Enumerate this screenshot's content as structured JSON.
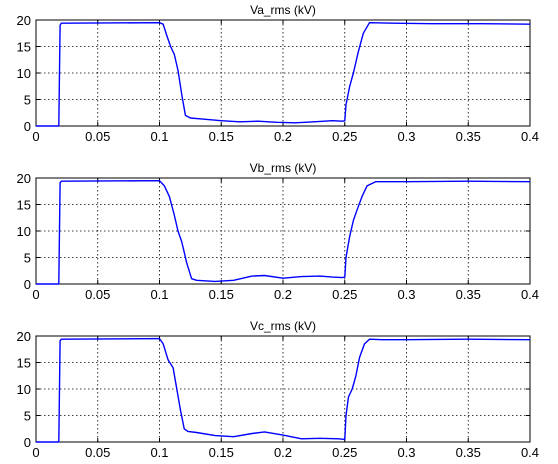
{
  "chart_data": [
    {
      "type": "line",
      "title": "Va_rms (kV)",
      "xlabel": "",
      "ylabel": "",
      "xlim": [
        0,
        0.4
      ],
      "ylim": [
        0,
        20
      ],
      "xticks": [
        0,
        0.05,
        0.1,
        0.15,
        0.2,
        0.25,
        0.3,
        0.35,
        0.4
      ],
      "xtick_labels": [
        "0",
        "0.05",
        "0.1",
        "0.15",
        "0.2",
        "0.25",
        "0.3",
        "0.35",
        "0.4"
      ],
      "yticks": [
        0,
        5,
        10,
        15,
        20
      ],
      "ytick_labels": [
        "0",
        "5",
        "10",
        "15",
        "20"
      ],
      "grid": true,
      "series": [
        {
          "color": "#0000ff",
          "x": [
            0,
            0.0185,
            0.0195,
            0.0205,
            0.1,
            0.103,
            0.106,
            0.109,
            0.112,
            0.115,
            0.118,
            0.121,
            0.125,
            0.135,
            0.15,
            0.165,
            0.18,
            0.195,
            0.21,
            0.225,
            0.24,
            0.248,
            0.25,
            0.251,
            0.254,
            0.257,
            0.261,
            0.265,
            0.27,
            0.29,
            0.32,
            0.36,
            0.4
          ],
          "y": [
            0,
            0,
            19.0,
            19.4,
            19.5,
            19.2,
            17.0,
            15.0,
            13.5,
            10.5,
            6.0,
            2.0,
            1.5,
            1.3,
            1.0,
            0.8,
            0.9,
            0.7,
            0.6,
            0.8,
            1.0,
            0.9,
            1.0,
            4.0,
            7.5,
            10.0,
            14.0,
            17.5,
            19.5,
            19.4,
            19.3,
            19.3,
            19.2
          ]
        }
      ]
    },
    {
      "type": "line",
      "title": "Vb_rms (kV)",
      "xlabel": "",
      "ylabel": "",
      "xlim": [
        0,
        0.4
      ],
      "ylim": [
        0,
        20
      ],
      "xticks": [
        0,
        0.05,
        0.1,
        0.15,
        0.2,
        0.25,
        0.3,
        0.35,
        0.4
      ],
      "xtick_labels": [
        "0",
        "0.05",
        "0.1",
        "0.15",
        "0.2",
        "0.25",
        "0.3",
        "0.35",
        "0.4"
      ],
      "yticks": [
        0,
        5,
        10,
        15,
        20
      ],
      "ytick_labels": [
        "0",
        "5",
        "10",
        "15",
        "20"
      ],
      "grid": true,
      "series": [
        {
          "color": "#0000ff",
          "x": [
            0,
            0.0185,
            0.0195,
            0.0205,
            0.1,
            0.104,
            0.108,
            0.112,
            0.115,
            0.118,
            0.122,
            0.126,
            0.13,
            0.145,
            0.16,
            0.175,
            0.185,
            0.2,
            0.215,
            0.23,
            0.24,
            0.248,
            0.25,
            0.251,
            0.254,
            0.257,
            0.26,
            0.264,
            0.268,
            0.275,
            0.3,
            0.35,
            0.4
          ],
          "y": [
            0,
            0,
            19.1,
            19.4,
            19.5,
            18.5,
            16.5,
            13.0,
            10.0,
            8.0,
            4.0,
            1.0,
            0.7,
            0.5,
            0.7,
            1.5,
            1.6,
            1.1,
            1.4,
            1.5,
            1.3,
            1.2,
            1.3,
            5.0,
            9.0,
            12.0,
            14.0,
            16.5,
            18.5,
            19.3,
            19.3,
            19.4,
            19.3
          ]
        }
      ]
    },
    {
      "type": "line",
      "title": "Vc_rms (kV)",
      "xlabel": "",
      "ylabel": "",
      "xlim": [
        0,
        0.4
      ],
      "ylim": [
        0,
        20
      ],
      "xticks": [
        0,
        0.05,
        0.1,
        0.15,
        0.2,
        0.25,
        0.3,
        0.35,
        0.4
      ],
      "xtick_labels": [
        "0",
        "0.05",
        "0.1",
        "0.15",
        "0.2",
        "0.25",
        "0.3",
        "0.35",
        "0.4"
      ],
      "yticks": [
        0,
        5,
        10,
        15,
        20
      ],
      "ytick_labels": [
        "0",
        "5",
        "10",
        "15",
        "20"
      ],
      "grid": true,
      "series": [
        {
          "color": "#0000ff",
          "x": [
            0,
            0.0185,
            0.0195,
            0.0205,
            0.1,
            0.103,
            0.107,
            0.111,
            0.114,
            0.117,
            0.12,
            0.123,
            0.13,
            0.145,
            0.16,
            0.175,
            0.185,
            0.2,
            0.215,
            0.23,
            0.245,
            0.25,
            0.251,
            0.253,
            0.256,
            0.259,
            0.262,
            0.266,
            0.27,
            0.28,
            0.3,
            0.35,
            0.4
          ],
          "y": [
            0,
            0,
            19.1,
            19.4,
            19.5,
            18.5,
            15.5,
            14.0,
            10.0,
            6.0,
            2.5,
            2.0,
            1.8,
            1.2,
            1.0,
            1.6,
            1.9,
            1.3,
            0.6,
            0.7,
            0.6,
            0.5,
            5.0,
            8.5,
            10.0,
            12.5,
            16.0,
            18.5,
            19.4,
            19.3,
            19.3,
            19.4,
            19.3
          ]
        }
      ]
    }
  ]
}
